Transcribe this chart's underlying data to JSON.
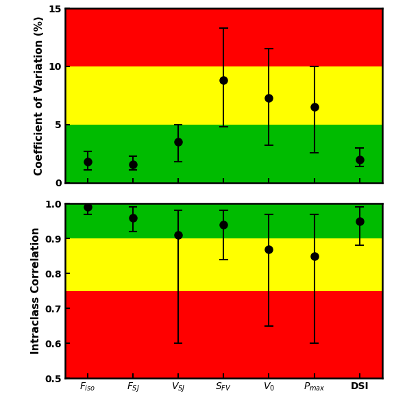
{
  "categories": [
    "F_iso",
    "F_SJ",
    "V_SJ",
    "S_FV",
    "V_0",
    "P_max",
    "DSI"
  ],
  "cat_labels": [
    "$F_{iso}$",
    "$F_{SJ}$",
    "$V_{SJ}$",
    "$S_{FV}$",
    "$V_0$",
    "$P_{max}$",
    "DSI"
  ],
  "cv_means": [
    1.8,
    1.6,
    3.5,
    8.8,
    7.3,
    6.5,
    2.0
  ],
  "cv_lower": [
    1.1,
    1.1,
    1.8,
    4.8,
    3.2,
    2.6,
    1.4
  ],
  "cv_upper": [
    2.7,
    2.3,
    5.0,
    13.3,
    11.5,
    10.0,
    3.0
  ],
  "icc_means": [
    0.99,
    0.96,
    0.91,
    0.94,
    0.87,
    0.85,
    0.95
  ],
  "icc_lower": [
    0.97,
    0.92,
    0.6,
    0.84,
    0.65,
    0.6,
    0.88
  ],
  "icc_upper": [
    1.0,
    0.99,
    0.98,
    0.98,
    0.97,
    0.97,
    0.99
  ],
  "color_red": "#FF0000",
  "color_yellow": "#FFFF00",
  "color_green": "#00BB00",
  "cv_ylim": [
    0,
    15
  ],
  "cv_green_max": 5,
  "cv_yellow_max": 10,
  "icc_ylim": [
    0.5,
    1.0
  ],
  "icc_red_max": 0.75,
  "icc_yellow_max": 0.9,
  "ylabel_cv": "Coefficient of Variation (%)",
  "ylabel_icc": "Intraclass Correlation",
  "marker_color": "black",
  "marker_size": 9,
  "cap_size": 3,
  "linewidth": 1.5,
  "ylabel_fontsize": 11,
  "tick_fontsize": 10,
  "xlabel_fontsize": 12
}
